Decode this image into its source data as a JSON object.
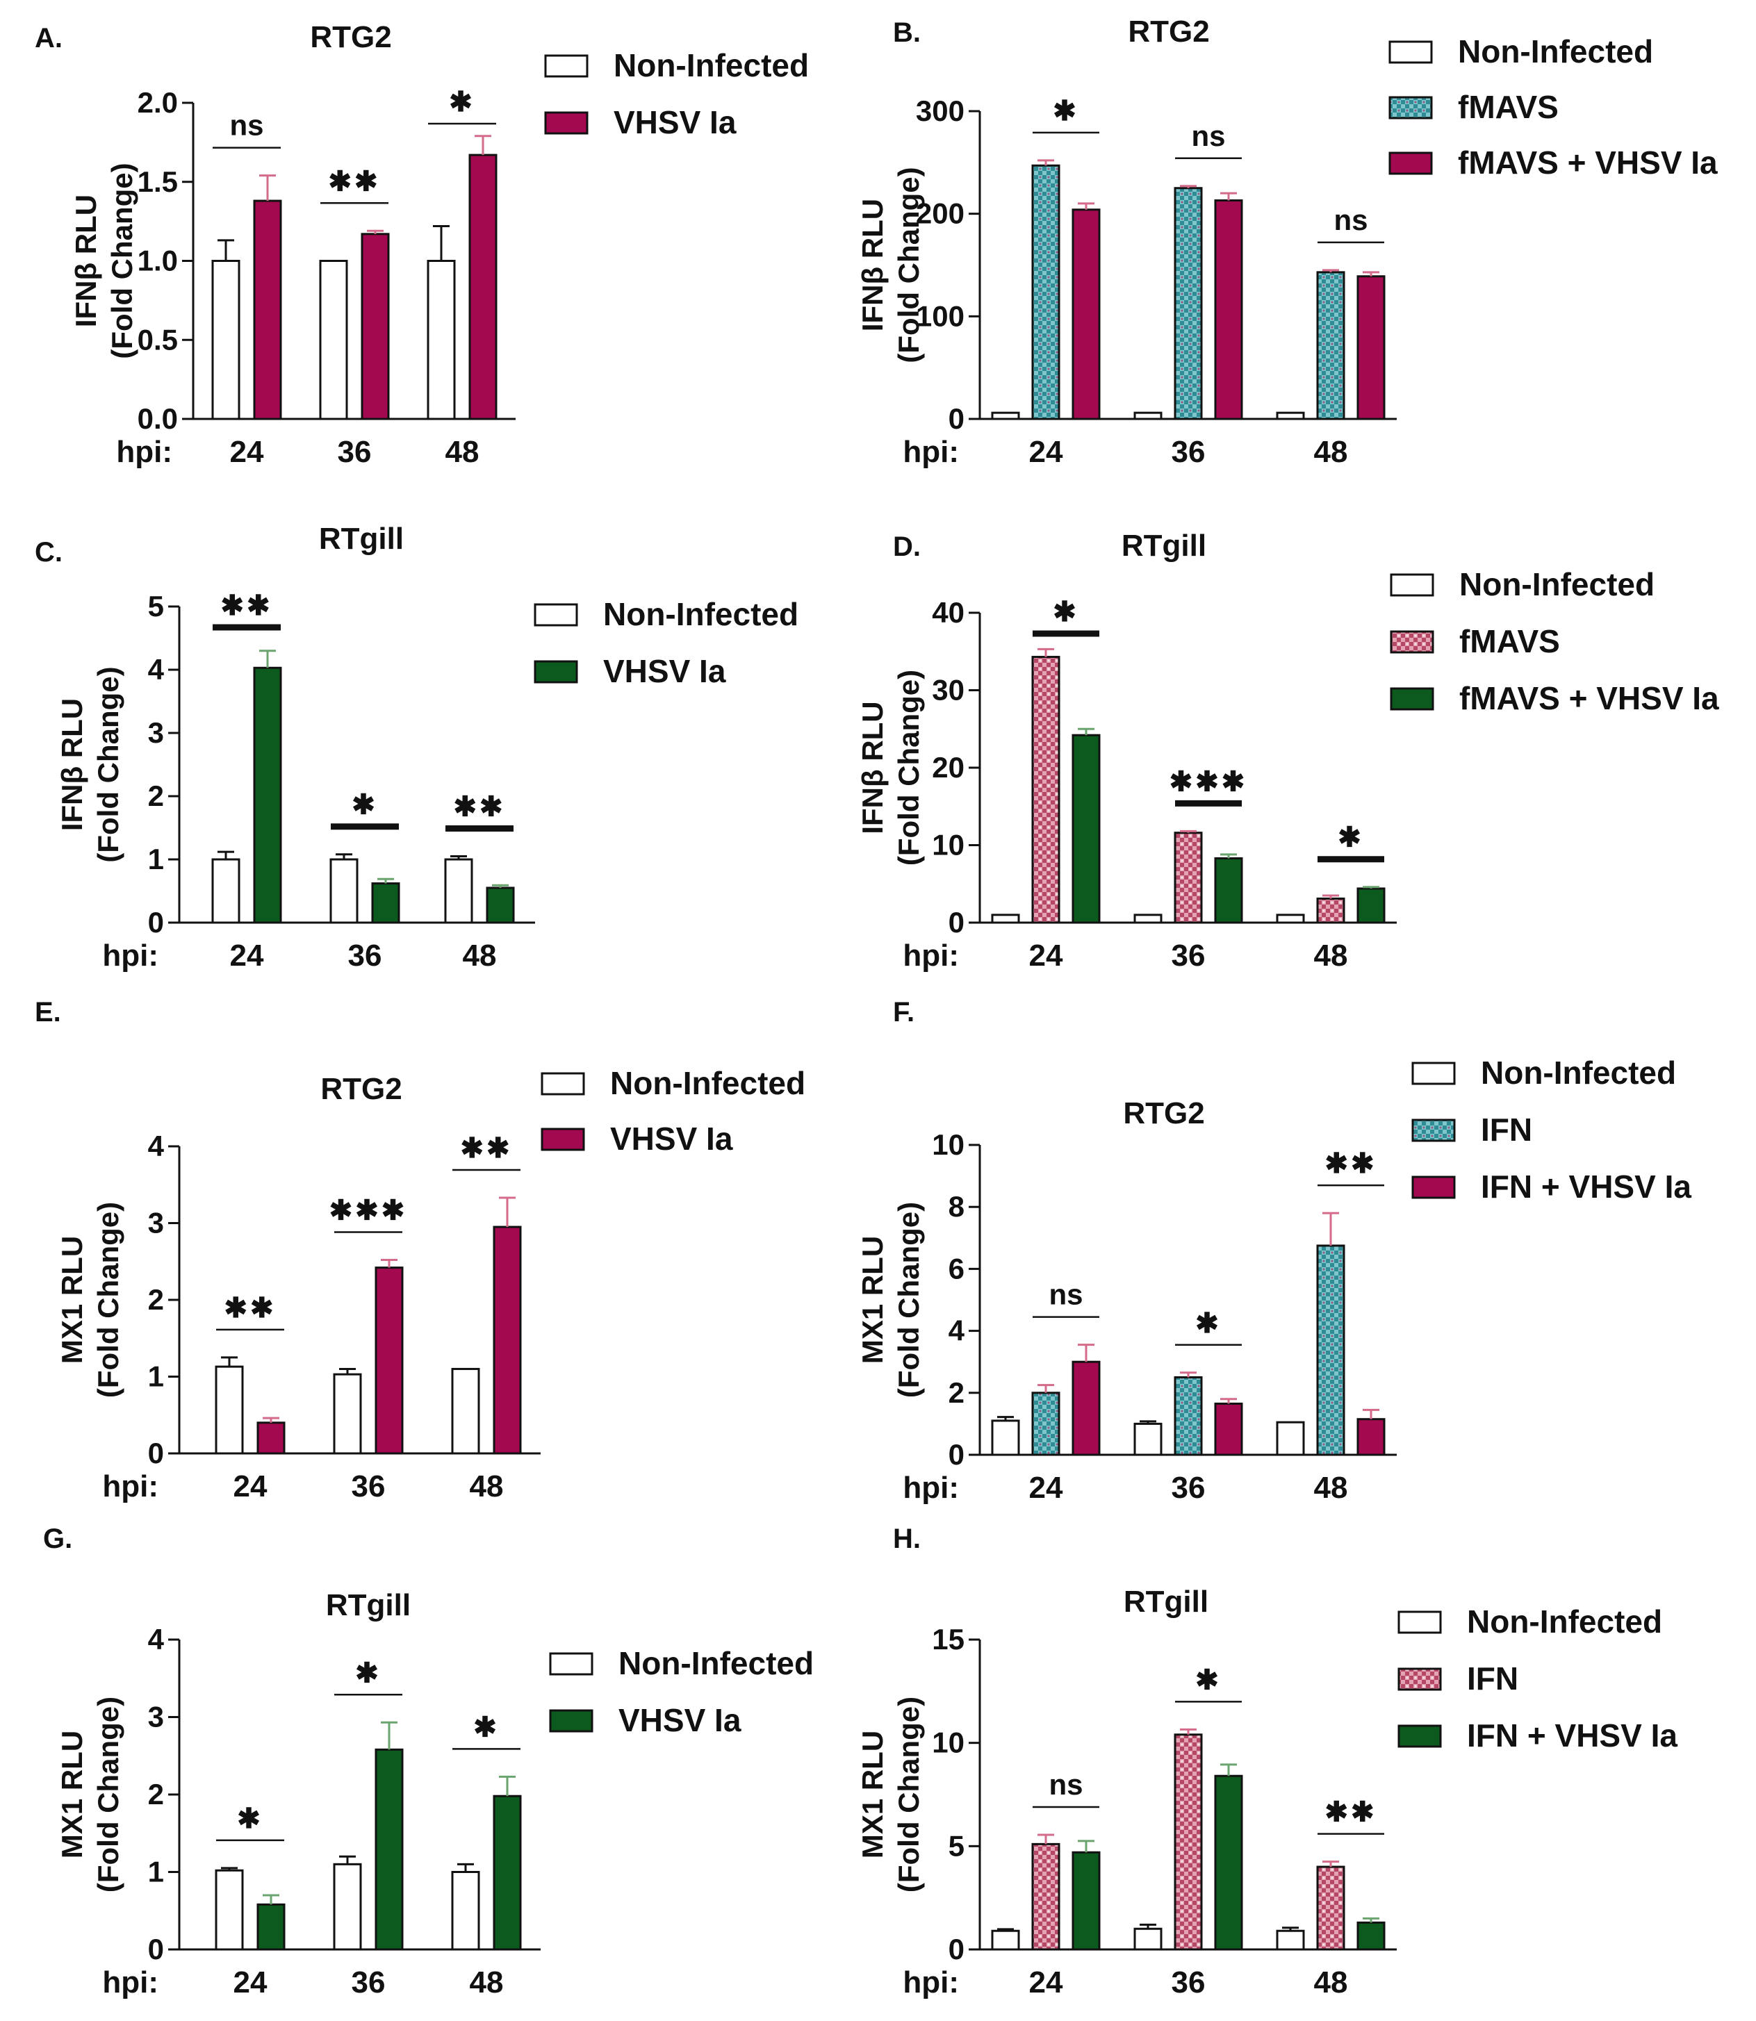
{
  "figure": {
    "colors": {
      "white": "#ffffff",
      "crimson": "#a3094f",
      "green": "#0d5a1f",
      "teal_pattern": "#4fa6ab",
      "pink_pattern": "#c65c75",
      "error_crimson": "#d56b8a",
      "error_green": "#6aa46f"
    }
  },
  "chart_data": [
    {
      "panel": "A.",
      "type": "bar",
      "title": "RTG2",
      "ylabel": [
        "IFNβ RLU",
        "(Fold Change)"
      ],
      "xprefix": "hpi:",
      "categories": [
        "24",
        "36",
        "48"
      ],
      "ylim": [
        0,
        2.0
      ],
      "yticks": [
        "0.0",
        "0.5",
        "1.0",
        "1.5",
        "2.0"
      ],
      "series": [
        {
          "name": "Non-Infected",
          "fill": "white",
          "values": [
            1.0,
            1.0,
            1.0
          ],
          "errors": [
            0.13,
            0.0,
            0.22
          ]
        },
        {
          "name": "VHSV Ia",
          "fill": "crimson",
          "values": [
            1.38,
            1.17,
            1.67
          ],
          "errors": [
            0.16,
            0.02,
            0.12
          ]
        }
      ],
      "significance": [
        "ns",
        "✱✱",
        "✱"
      ]
    },
    {
      "panel": "B.",
      "type": "bar",
      "title": "RTG2",
      "ylabel": [
        "IFNβ RLU",
        "(Fold Change)"
      ],
      "xprefix": "hpi:",
      "categories": [
        "24",
        "36",
        "48"
      ],
      "ylim": [
        0,
        300
      ],
      "yticks": [
        "0",
        "100",
        "200",
        "300"
      ],
      "series": [
        {
          "name": "Non-Infected",
          "fill": "white",
          "values": [
            6,
            6,
            6
          ],
          "errors": [
            0,
            0,
            0
          ]
        },
        {
          "name": "fMAVS",
          "fill": "teal",
          "values": [
            247,
            225,
            143
          ],
          "errors": [
            5,
            2,
            2
          ]
        },
        {
          "name": "fMAVS + VHSV Ia",
          "fill": "crimson",
          "values": [
            204,
            213,
            139
          ],
          "errors": [
            6,
            7,
            4
          ]
        }
      ],
      "significance": [
        "✱",
        "ns",
        "ns"
      ]
    },
    {
      "panel": "C.",
      "type": "bar",
      "title": "RTgill",
      "ylabel": [
        "IFNβ RLU",
        "(Fold Change)"
      ],
      "xprefix": "hpi:",
      "categories": [
        "24",
        "36",
        "48"
      ],
      "ylim": [
        0,
        5
      ],
      "yticks": [
        "0",
        "1",
        "2",
        "3",
        "4",
        "5"
      ],
      "series": [
        {
          "name": "Non-Infected",
          "fill": "white",
          "values": [
            1.0,
            1.0,
            1.0
          ],
          "errors": [
            0.12,
            0.08,
            0.05
          ]
        },
        {
          "name": "VHSV Ia",
          "fill": "green",
          "values": [
            4.03,
            0.62,
            0.55
          ],
          "errors": [
            0.27,
            0.07,
            0.04
          ]
        }
      ],
      "significance": [
        "✱✱",
        "✱",
        "✱✱"
      ]
    },
    {
      "panel": "D.",
      "type": "bar",
      "title": "RTgill",
      "ylabel": [
        "IFNβ RLU",
        "(Fold Change)"
      ],
      "xprefix": "hpi:",
      "categories": [
        "24",
        "36",
        "48"
      ],
      "ylim": [
        0,
        40
      ],
      "yticks": [
        "0",
        "10",
        "20",
        "30",
        "40"
      ],
      "series": [
        {
          "name": "Non-Infected",
          "fill": "white",
          "values": [
            1.0,
            1.0,
            1.0
          ],
          "errors": [
            0,
            0,
            0
          ]
        },
        {
          "name": "fMAVS",
          "fill": "pink",
          "values": [
            34.3,
            11.6,
            3.1
          ],
          "errors": [
            1.0,
            0.2,
            0.4
          ]
        },
        {
          "name": "fMAVS + VHSV Ia",
          "fill": "green",
          "values": [
            24.2,
            8.3,
            4.4
          ],
          "errors": [
            0.8,
            0.5,
            0.2
          ]
        }
      ],
      "significance": [
        "✱",
        "✱✱✱",
        "✱"
      ]
    },
    {
      "panel": "E.",
      "type": "bar",
      "title": "RTG2",
      "ylabel": [
        "MX1 RLU",
        "(Fold Change)"
      ],
      "xprefix": "hpi:",
      "categories": [
        "24",
        "36",
        "48"
      ],
      "ylim": [
        0,
        4
      ],
      "yticks": [
        "0",
        "1",
        "2",
        "3",
        "4"
      ],
      "series": [
        {
          "name": "Non-Infected",
          "fill": "white",
          "values": [
            1.13,
            1.03,
            1.1
          ],
          "errors": [
            0.12,
            0.07,
            0.0
          ]
        },
        {
          "name": "VHSV Ia",
          "fill": "crimson",
          "values": [
            0.4,
            2.42,
            2.95
          ],
          "errors": [
            0.06,
            0.1,
            0.38
          ]
        }
      ],
      "significance": [
        "✱✱",
        "✱✱✱",
        "✱✱"
      ]
    },
    {
      "panel": "F.",
      "type": "bar",
      "title": "RTG2",
      "ylabel": [
        "MX1 RLU",
        "(Fold Change)"
      ],
      "xprefix": "hpi:",
      "categories": [
        "24",
        "36",
        "48"
      ],
      "ylim": [
        0,
        10
      ],
      "yticks": [
        "0",
        "2",
        "4",
        "6",
        "8",
        "10"
      ],
      "series": [
        {
          "name": "Non-Infected",
          "fill": "white",
          "values": [
            1.1,
            1.0,
            1.05
          ],
          "errors": [
            0.12,
            0.08,
            0.0
          ]
        },
        {
          "name": "IFN",
          "fill": "teal",
          "values": [
            2.0,
            2.5,
            6.75
          ],
          "errors": [
            0.25,
            0.15,
            1.05
          ]
        },
        {
          "name": "IFN + VHSV Ia",
          "fill": "crimson",
          "values": [
            3.0,
            1.65,
            1.15
          ],
          "errors": [
            0.55,
            0.15,
            0.3
          ]
        }
      ],
      "significance": [
        "ns",
        "✱",
        "✱✱"
      ]
    },
    {
      "panel": "G.",
      "type": "bar",
      "title": "RTgill",
      "ylabel": [
        "MX1 RLU",
        "(Fold Change)"
      ],
      "xprefix": "hpi:",
      "categories": [
        "24",
        "36",
        "48"
      ],
      "ylim": [
        0,
        4
      ],
      "yticks": [
        "0",
        "1",
        "2",
        "3",
        "4"
      ],
      "series": [
        {
          "name": "Non-Infected",
          "fill": "white",
          "values": [
            1.02,
            1.1,
            1.0
          ],
          "errors": [
            0.03,
            0.1,
            0.1
          ]
        },
        {
          "name": "VHSV Ia",
          "fill": "green",
          "values": [
            0.58,
            2.58,
            1.98
          ],
          "errors": [
            0.12,
            0.35,
            0.25
          ]
        }
      ],
      "significance": [
        "✱",
        "✱",
        "✱"
      ]
    },
    {
      "panel": "H.",
      "type": "bar",
      "title": "RTgill",
      "ylabel": [
        "MX1 RLU",
        "(Fold Change)"
      ],
      "xprefix": "hpi:",
      "categories": [
        "24",
        "36",
        "48"
      ],
      "ylim": [
        0,
        15
      ],
      "yticks": [
        "0",
        "5",
        "10",
        "15"
      ],
      "series": [
        {
          "name": "Non-Infected",
          "fill": "white",
          "values": [
            0.9,
            1.0,
            0.9
          ],
          "errors": [
            0.08,
            0.2,
            0.15
          ]
        },
        {
          "name": "IFN",
          "fill": "pink",
          "values": [
            5.1,
            10.4,
            4.0
          ],
          "errors": [
            0.45,
            0.25,
            0.25
          ]
        },
        {
          "name": "IFN + VHSV Ia",
          "fill": "green",
          "values": [
            4.7,
            8.4,
            1.3
          ],
          "errors": [
            0.55,
            0.55,
            0.2
          ]
        }
      ],
      "significance": [
        "ns",
        "✱",
        "✱✱"
      ]
    }
  ]
}
